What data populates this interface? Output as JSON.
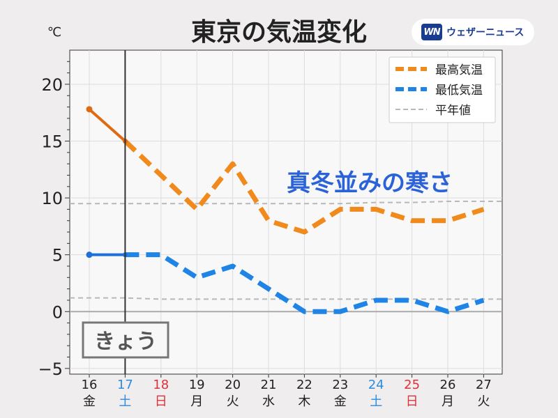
{
  "chart_data": {
    "type": "line",
    "title": "東京の気温変化",
    "unit_label": "℃",
    "annotation": "真冬並みの寒さ",
    "today_label": "きょう",
    "categories": [
      "16",
      "17",
      "18",
      "19",
      "20",
      "21",
      "22",
      "23",
      "24",
      "25",
      "26",
      "27"
    ],
    "weekdays": [
      "金",
      "土",
      "日",
      "月",
      "火",
      "水",
      "木",
      "金",
      "土",
      "日",
      "月",
      "火"
    ],
    "day_colors": [
      "#222222",
      "#2a8be0",
      "#e0303a",
      "#222222",
      "#222222",
      "#222222",
      "#222222",
      "#222222",
      "#2a8be0",
      "#e0303a",
      "#222222",
      "#222222"
    ],
    "today_index": 1,
    "ylim": [
      -5.5,
      23
    ],
    "yticks": [
      -5,
      0,
      5,
      10,
      15,
      20
    ],
    "grid": true,
    "legend_position": "top-right",
    "series": [
      {
        "name": "最高気温",
        "values": [
          17.8,
          15,
          12,
          9,
          13,
          8,
          7,
          9,
          9,
          8,
          8,
          9
        ],
        "color": "#f08a1c",
        "observed_color": "#e06a14"
      },
      {
        "name": "最低気温",
        "values": [
          5,
          5,
          5,
          3,
          4,
          2,
          0,
          0,
          1,
          1,
          0,
          1
        ],
        "color": "#1e84e6",
        "observed_color": "#1e6fd6"
      },
      {
        "name": "平年値",
        "upper": [
          9.5,
          9.5,
          9.5,
          9.5,
          9.5,
          9.5,
          9.5,
          9.5,
          9.6,
          9.6,
          9.7,
          9.7
        ],
        "lower": [
          1.2,
          1.2,
          1.1,
          1.1,
          1.1,
          1.1,
          1.1,
          1.1,
          1.1,
          1.1,
          1.1,
          1.1
        ],
        "color": "#b8b8b8"
      }
    ]
  },
  "brand": {
    "mark": "WN",
    "name": "ウェザーニュース"
  }
}
